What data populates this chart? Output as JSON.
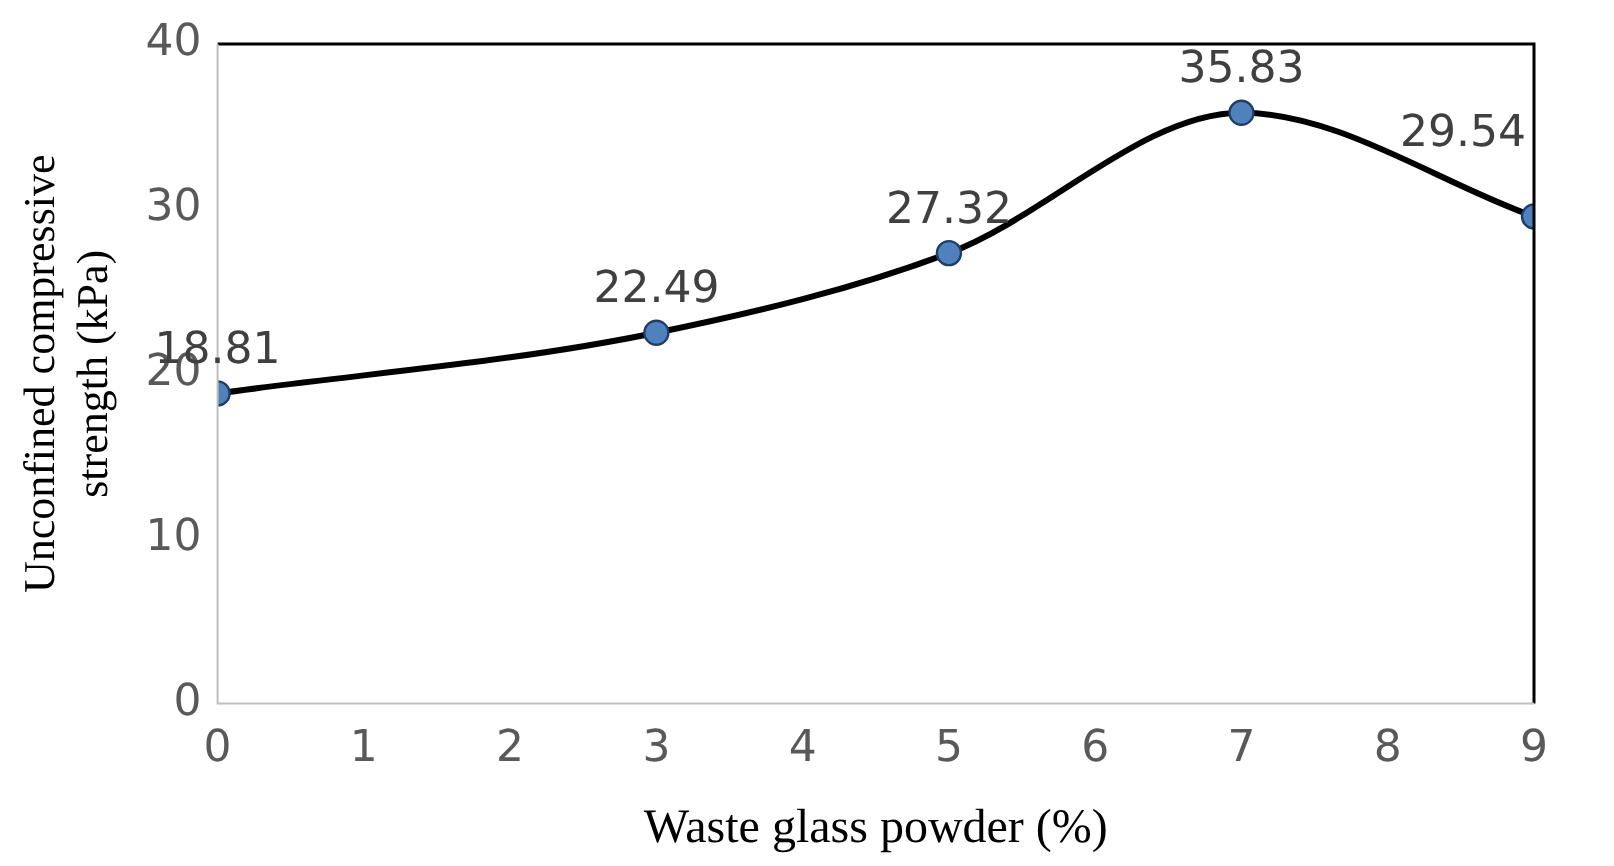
{
  "chart_data": {
    "type": "line",
    "xlabel": "Waste glass powder (%)",
    "ylabel": "Unconfined compressive strength (kPa)",
    "x": [
      0,
      3,
      5,
      7,
      9
    ],
    "series": [
      {
        "color": "#000000",
        "values": [
          18.81,
          22.49,
          27.32,
          35.83,
          29.54
        ]
      }
    ],
    "xlim": [
      0,
      9
    ],
    "xticks": [
      0,
      1,
      2,
      3,
      4,
      5,
      6,
      7,
      8,
      9
    ],
    "ylim": [
      0,
      40
    ],
    "yticks": [
      0,
      10,
      20,
      30,
      40
    ],
    "grid": false,
    "legend": false,
    "marker": "circle",
    "line_style": "solid",
    "data_labels": true
  }
}
